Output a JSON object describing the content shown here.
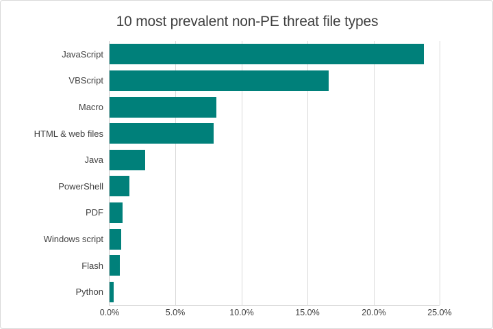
{
  "chart_data": {
    "type": "bar",
    "orientation": "horizontal",
    "title": "10 most prevalent non-PE threat file types",
    "categories": [
      "JavaScript",
      "VBScript",
      "Macro",
      "HTML & web files",
      "Java",
      "PowerShell",
      "PDF",
      "Windows script",
      "Flash",
      "Python"
    ],
    "values": [
      23.8,
      16.6,
      8.1,
      7.9,
      2.7,
      1.5,
      1.0,
      0.9,
      0.8,
      0.3
    ],
    "unit": "%",
    "xlabel": "",
    "ylabel": "",
    "xlim": [
      0,
      25
    ],
    "x_ticks": [
      0,
      5,
      10,
      15,
      20,
      25
    ],
    "x_tick_labels": [
      "0.0%",
      "5.0%",
      "10.0%",
      "15.0%",
      "20.0%",
      "25.0%"
    ],
    "grid": "vertical-major",
    "legend": "none",
    "colors": {
      "bar": "#00807a",
      "title_text": "#404040",
      "axis_text": "#404040",
      "gridline": "#d9d9d9",
      "chart_border": "#d9d9d9",
      "background": "#ffffff"
    }
  }
}
